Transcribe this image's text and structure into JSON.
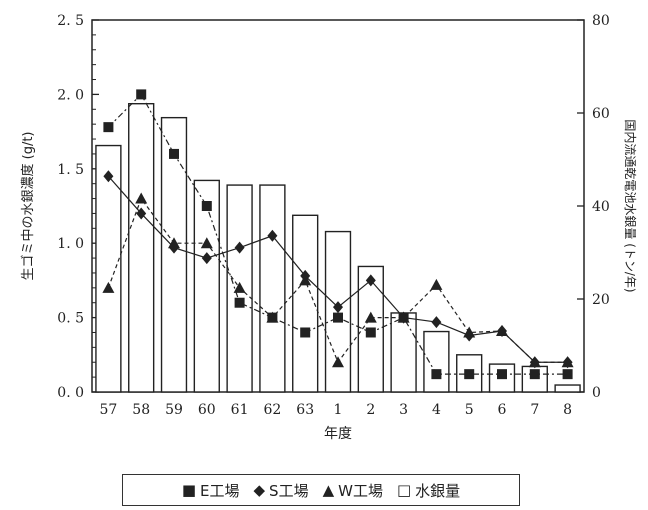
{
  "chart_data": {
    "type": "bar",
    "categories": [
      "57",
      "58",
      "59",
      "60",
      "61",
      "62",
      "63",
      "1",
      "2",
      "3",
      "4",
      "5",
      "6",
      "7",
      "8"
    ],
    "title": "",
    "xlabel": "年度",
    "ylabel_left": "生ゴミ中の水銀濃度 (g/t)",
    "ylabel_right": "国内流通乾電池水銀量 (トン/年)",
    "ylim_left": [
      0,
      2.5
    ],
    "ylim_right": [
      0,
      80
    ],
    "yticks_left": [
      "0. 0",
      "0. 5",
      "1. 0",
      "1. 5",
      "2. 0",
      "2. 5"
    ],
    "yticks_left_values": [
      0,
      0.5,
      1.0,
      1.5,
      2.0,
      2.5
    ],
    "yticks_right": [
      "0",
      "20",
      "40",
      "60",
      "80"
    ],
    "yticks_right_values": [
      0,
      20,
      40,
      60,
      80
    ],
    "bar_series": {
      "name": "水銀量",
      "axis": "right",
      "values": [
        53,
        62,
        59,
        45.5,
        44.5,
        44.5,
        38,
        34.5,
        27,
        17,
        13,
        8,
        6,
        5.5,
        1.5
      ]
    },
    "series": [
      {
        "name": "E工場",
        "marker": "square",
        "line": "dashdot",
        "values": [
          1.78,
          2.0,
          1.6,
          1.25,
          0.6,
          0.5,
          0.4,
          0.5,
          0.4,
          0.5,
          0.12,
          0.12,
          0.12,
          0.12,
          0.12
        ]
      },
      {
        "name": "S工場",
        "marker": "diamond",
        "line": "solid",
        "values": [
          1.45,
          1.2,
          0.97,
          0.9,
          0.97,
          1.05,
          0.78,
          0.57,
          0.75,
          0.5,
          0.47,
          0.38,
          0.41,
          0.2,
          0.2
        ]
      },
      {
        "name": "W工場",
        "marker": "triangle",
        "line": "dashed",
        "values": [
          0.7,
          1.3,
          1.0,
          1.0,
          0.7,
          0.5,
          0.75,
          0.2,
          0.5,
          0.5,
          0.72,
          0.4,
          0.41,
          0.2,
          0.2
        ]
      }
    ],
    "legend_position": "bottom",
    "grid": false
  },
  "legend": [
    {
      "symbol": "■",
      "label": "E工場"
    },
    {
      "symbol": "◆",
      "label": "S工場"
    },
    {
      "symbol": "▲",
      "label": "W工場"
    },
    {
      "symbol": "□",
      "label": "水銀量"
    }
  ]
}
